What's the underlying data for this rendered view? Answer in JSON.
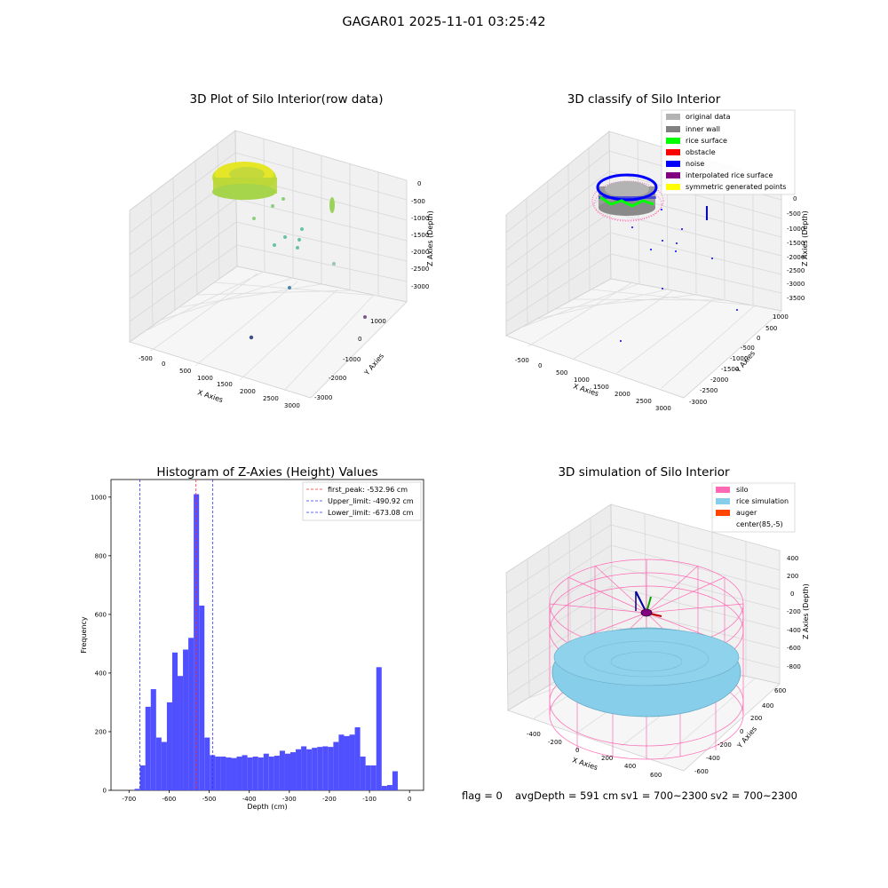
{
  "suptitle": "GAGAR01 2025-11-01 03:25:42",
  "status": {
    "flag": "flag = 0",
    "avg_depth": "avgDepth = 591 cm",
    "sv1": "sv1 = 700~2300",
    "sv2": "sv2 = 700~2300"
  },
  "chart_data": [
    {
      "type": "scatter",
      "title": "3D Plot of Silo Interior(row data)",
      "xlabel": "X Axies",
      "ylabel": "Y Axies",
      "zlabel": "Z Axies (Depth)",
      "x_ticks": [
        "-500",
        "0",
        "500",
        "1000",
        "1500",
        "2000",
        "2500",
        "3000"
      ],
      "y_ticks": [
        "1000",
        "0",
        "-1000",
        "-2000",
        "-3000"
      ],
      "z_ticks": [
        "0",
        "-500",
        "-1000",
        "-1500",
        "-2000",
        "-2500",
        "-3000"
      ],
      "colors": {
        "surface": "#d4e21a",
        "mid": "#7ccf6b",
        "low": "#5fb9a8",
        "deep": "#3b4d8a"
      }
    },
    {
      "type": "scatter",
      "title": "3D classify of Silo Interior",
      "xlabel": "X Axies",
      "ylabel": "Y Axies",
      "zlabel": "Z Axies (Depth)",
      "x_ticks": [
        "-500",
        "0",
        "500",
        "1000",
        "1500",
        "2000",
        "2500",
        "3000"
      ],
      "y_ticks": [
        "1000",
        "500",
        "0",
        "-500",
        "-1000",
        "-1500",
        "-2000",
        "-2500",
        "-3000"
      ],
      "z_ticks": [
        "0",
        "-500",
        "-1000",
        "-1500",
        "-2000",
        "-2500",
        "-3000",
        "-3500"
      ],
      "legend": [
        {
          "label": "original data",
          "color": "#b3b3b3"
        },
        {
          "label": "inner wall",
          "color": "#808080"
        },
        {
          "label": "rice surface",
          "color": "#00ff00"
        },
        {
          "label": "obstacle",
          "color": "#ff0000"
        },
        {
          "label": "noise",
          "color": "#0000ff"
        },
        {
          "label": "interpolated rice surface",
          "color": "#800080"
        },
        {
          "label": "symmetric generated points",
          "color": "#ffff00"
        }
      ],
      "legend_placement": "top-right"
    },
    {
      "type": "bar",
      "title": "Histogram of Z-Axies (Height) Values",
      "xlabel": "Depth (cm)",
      "ylabel": "Frequency",
      "xlim": [
        -745,
        35
      ],
      "ylim": [
        0,
        1060
      ],
      "x_ticks": [
        -700,
        -600,
        -500,
        -400,
        -300,
        -200,
        -100,
        0
      ],
      "y_ticks": [
        0,
        200,
        400,
        600,
        800,
        1000
      ],
      "bin_start": -686,
      "bin_width": 13.4,
      "values": [
        5,
        85,
        285,
        345,
        180,
        165,
        300,
        470,
        390,
        480,
        520,
        1010,
        630,
        180,
        120,
        115,
        115,
        112,
        110,
        115,
        120,
        112,
        115,
        112,
        125,
        115,
        118,
        135,
        125,
        130,
        140,
        150,
        140,
        145,
        148,
        150,
        148,
        165,
        190,
        185,
        190,
        215,
        115,
        85,
        85,
        420,
        15,
        18,
        65
      ],
      "bar_color": "#5050ff",
      "lines": [
        {
          "label": "first_peak: -532.96 cm",
          "value": -532.96,
          "color": "#ff3030"
        },
        {
          "label": "Upper_limit: -490.92 cm",
          "value": -490.92,
          "color": "#3030ff"
        },
        {
          "label": "Lower_limit: -673.08 cm",
          "value": -673.08,
          "color": "#3030ff"
        }
      ],
      "legend_placement": "top-right"
    },
    {
      "type": "scatter",
      "title": "3D simulation of Silo Interior",
      "xlabel": "X Axies",
      "ylabel": "Y Axies",
      "zlabel": "Z Axies (Depth)",
      "x_ticks": [
        "-400",
        "-200",
        "0",
        "200",
        "400",
        "600"
      ],
      "y_ticks": [
        "600",
        "400",
        "200",
        "0",
        "-200",
        "-400",
        "-600"
      ],
      "z_ticks": [
        "400",
        "200",
        "0",
        "-200",
        "-400",
        "-600",
        "-800"
      ],
      "legend": [
        {
          "label": "silo",
          "color": "#ff69b4"
        },
        {
          "label": "rice simulation",
          "color": "#87ceeb"
        },
        {
          "label": "auger",
          "color": "#ff4500"
        },
        {
          "label": "center(85,-5)",
          "color": "#ffffff"
        }
      ],
      "legend_placement": "top-right"
    }
  ]
}
